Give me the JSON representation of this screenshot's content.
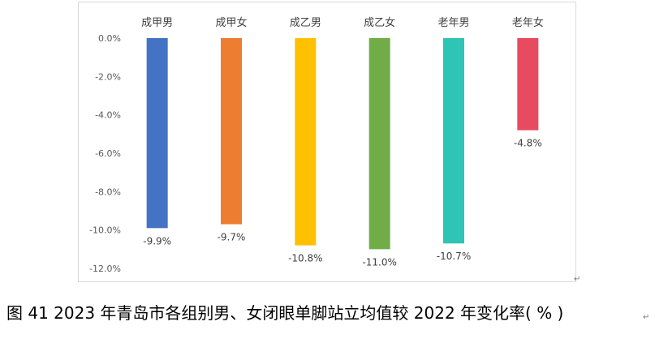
{
  "chart_data": {
    "type": "bar",
    "categories": [
      "成甲男",
      "成甲女",
      "成乙男",
      "成乙女",
      "老年男",
      "老年女"
    ],
    "values": [
      -9.9,
      -9.7,
      -10.8,
      -11.0,
      -10.7,
      -4.8
    ],
    "value_labels": [
      "-9.9%",
      "-9.7%",
      "-10.8%",
      "-11.0%",
      "-10.7%",
      "-4.8%"
    ],
    "colors": [
      "#4472c4",
      "#ed7d31",
      "#ffc000",
      "#70ad47",
      "#2ec4b6",
      "#e84a5f"
    ],
    "yticks": [
      0,
      -2,
      -4,
      -6,
      -8,
      -10,
      -12
    ],
    "ytick_labels": [
      "0.0%",
      "-2.0%",
      "-4.0%",
      "-6.0%",
      "-8.0%",
      "-10.0%",
      "-12.0%"
    ],
    "ylim": [
      -12,
      0
    ],
    "category_axis_position": "top",
    "grid": false,
    "legend": false,
    "title": "",
    "xlabel": "",
    "ylabel": ""
  },
  "caption": "图 41 2023 年青岛市各组别男、女闭眼单脚站立均值较 2022 年变化率( % )",
  "marks": {
    "paragraph": "↵"
  }
}
